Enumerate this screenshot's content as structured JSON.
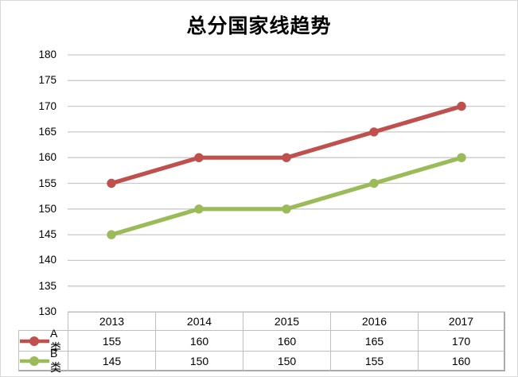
{
  "page": {
    "background": "#ffffff",
    "border_color": "#d9d9d9"
  },
  "chart_data": {
    "type": "line",
    "title": "总分国家线趋势",
    "categories": [
      "2013",
      "2014",
      "2015",
      "2016",
      "2017"
    ],
    "series": [
      {
        "name": "A类",
        "color": "#C0504D",
        "values": [
          155,
          160,
          160,
          165,
          170
        ]
      },
      {
        "name": "B类",
        "color": "#9BBB59",
        "values": [
          145,
          150,
          150,
          155,
          160
        ]
      }
    ],
    "xlabel": "",
    "ylabel": "",
    "ylim": [
      130,
      180
    ],
    "yticks": [
      180,
      175,
      170,
      165,
      160,
      155,
      150,
      145,
      140,
      135,
      130
    ],
    "grid": "horizontal",
    "grid_color": "#c9c9c9",
    "marker": "circle",
    "legend_position": "data-table-left",
    "data_table_shown": true,
    "table_border_color": "#bfbfbf",
    "table_outer_border_color": "#ababab"
  }
}
